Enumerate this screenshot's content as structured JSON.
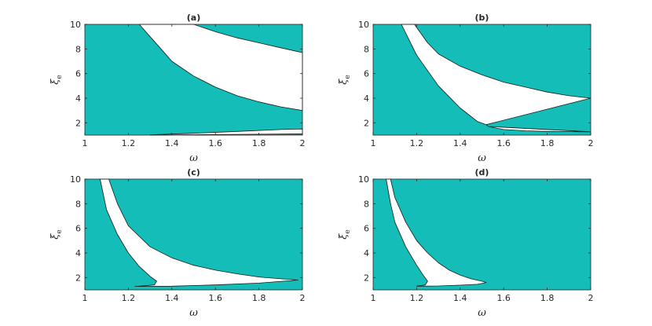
{
  "figure": {
    "fill_color": "#14bdb8",
    "background_color": "#ffffff",
    "boundary_color": "#1a1a1a"
  },
  "chart_data": [
    {
      "type": "area",
      "title": "(a)",
      "xlabel": "ω",
      "ylabel": "ξ",
      "ylabel_sub": "e",
      "xlim": [
        1,
        2
      ],
      "ylim": [
        1,
        10
      ],
      "xticks": [
        "1",
        "1.2",
        "1.4",
        "1.6",
        "1.8",
        "2"
      ],
      "yticks": [
        "2",
        "4",
        "6",
        "8",
        "10"
      ],
      "fill_region": "outside white bands",
      "white_regions": [
        {
          "upper": [
            [
              1.5,
              10
            ],
            [
              1.6,
              9.4
            ],
            [
              1.7,
              8.9
            ],
            [
              1.8,
              8.5
            ],
            [
              1.9,
              8.1
            ],
            [
              2.0,
              7.7
            ]
          ],
          "lower": [
            [
              1.25,
              10
            ],
            [
              1.3,
              9.0
            ],
            [
              1.35,
              8.0
            ],
            [
              1.4,
              7.0
            ],
            [
              1.5,
              5.8
            ],
            [
              1.6,
              4.9
            ],
            [
              1.7,
              4.2
            ],
            [
              1.8,
              3.7
            ],
            [
              1.9,
              3.3
            ],
            [
              2.0,
              3.0
            ]
          ]
        },
        {
          "upper": [
            [
              1.3,
              1.02
            ],
            [
              1.5,
              1.15
            ],
            [
              1.7,
              1.3
            ],
            [
              1.9,
              1.45
            ],
            [
              2.0,
              1.5
            ]
          ],
          "lower": [
            [
              1.3,
              1.0
            ],
            [
              1.5,
              1.03
            ],
            [
              1.7,
              1.06
            ],
            [
              2.0,
              1.1
            ]
          ]
        }
      ]
    },
    {
      "type": "area",
      "title": "(b)",
      "xlabel": "ω",
      "ylabel": "ξ",
      "ylabel_sub": "e",
      "xlim": [
        1,
        2
      ],
      "ylim": [
        1,
        10
      ],
      "xticks": [
        "1",
        "1.2",
        "1.4",
        "1.6",
        "1.8",
        "2"
      ],
      "yticks": [
        "2",
        "4",
        "6",
        "8",
        "10"
      ],
      "fill_region": "outside white band",
      "white_regions": [
        {
          "upper": [
            [
              1.19,
              10
            ],
            [
              1.25,
              8.5
            ],
            [
              1.3,
              7.6
            ],
            [
              1.4,
              6.6
            ],
            [
              1.5,
              5.9
            ],
            [
              1.6,
              5.3
            ],
            [
              1.7,
              4.9
            ],
            [
              1.8,
              4.5
            ],
            [
              1.9,
              4.2
            ],
            [
              2.0,
              4.0
            ]
          ],
          "tip": [
            [
              1.52,
              1.85
            ],
            [
              1.53,
              1.7
            ]
          ],
          "lower_left": [
            [
              1.13,
              10
            ],
            [
              1.2,
              7.5
            ],
            [
              1.3,
              5.0
            ],
            [
              1.4,
              3.2
            ],
            [
              1.48,
              2.1
            ],
            [
              1.52,
              1.85
            ]
          ],
          "lower_right": [
            [
              1.53,
              1.7
            ],
            [
              1.6,
              1.45
            ],
            [
              1.7,
              1.35
            ],
            [
              1.8,
              1.3
            ],
            [
              1.9,
              1.28
            ],
            [
              2.0,
              1.27
            ]
          ]
        }
      ]
    },
    {
      "type": "area",
      "title": "(c)",
      "xlabel": "ω",
      "ylabel": "ξ",
      "ylabel_sub": "e",
      "xlim": [
        1,
        2
      ],
      "ylim": [
        1,
        10
      ],
      "xticks": [
        "1",
        "1.2",
        "1.4",
        "1.6",
        "1.8",
        "2"
      ],
      "yticks": [
        "2",
        "4",
        "6",
        "8",
        "10"
      ],
      "fill_region": "outside white tongue",
      "white_regions": [
        {
          "upper": [
            [
              1.11,
              10
            ],
            [
              1.15,
              8.0
            ],
            [
              1.2,
              6.2
            ],
            [
              1.3,
              4.5
            ],
            [
              1.4,
              3.6
            ],
            [
              1.5,
              3.0
            ],
            [
              1.6,
              2.6
            ],
            [
              1.7,
              2.3
            ],
            [
              1.8,
              2.05
            ],
            [
              1.9,
              1.9
            ],
            [
              1.98,
              1.8
            ]
          ],
          "lower_left": [
            [
              1.07,
              10
            ],
            [
              1.1,
              7.5
            ],
            [
              1.15,
              5.5
            ],
            [
              1.2,
              4.0
            ],
            [
              1.25,
              2.9
            ],
            [
              1.3,
              2.1
            ],
            [
              1.33,
              1.7
            ],
            [
              1.32,
              1.4
            ],
            [
              1.25,
              1.3
            ],
            [
              1.23,
              1.28
            ]
          ],
          "lower_right": [
            [
              1.23,
              1.28
            ],
            [
              1.4,
              1.3
            ],
            [
              1.6,
              1.4
            ],
            [
              1.8,
              1.55
            ],
            [
              1.98,
              1.8
            ]
          ]
        }
      ]
    },
    {
      "type": "area",
      "title": "(d)",
      "xlabel": "ω",
      "ylabel": "ξ",
      "ylabel_sub": "e",
      "xlim": [
        1,
        2
      ],
      "ylim": [
        1,
        10
      ],
      "xticks": [
        "1",
        "1.2",
        "1.4",
        "1.6",
        "1.8",
        "2"
      ],
      "yticks": [
        "2",
        "4",
        "6",
        "8",
        "10"
      ],
      "fill_region": "outside white tongue",
      "white_regions": [
        {
          "upper": [
            [
              1.08,
              10
            ],
            [
              1.1,
              8.5
            ],
            [
              1.15,
              6.5
            ],
            [
              1.2,
              5.0
            ],
            [
              1.25,
              4.0
            ],
            [
              1.3,
              3.2
            ],
            [
              1.35,
              2.6
            ],
            [
              1.4,
              2.2
            ],
            [
              1.45,
              1.9
            ],
            [
              1.5,
              1.7
            ],
            [
              1.52,
              1.6
            ]
          ],
          "lower_left": [
            [
              1.06,
              10
            ],
            [
              1.08,
              8.0
            ],
            [
              1.1,
              6.5
            ],
            [
              1.15,
              4.5
            ],
            [
              1.2,
              3.0
            ],
            [
              1.23,
              2.2
            ],
            [
              1.25,
              1.7
            ],
            [
              1.24,
              1.4
            ],
            [
              1.2,
              1.3
            ]
          ],
          "lower_right": [
            [
              1.2,
              1.3
            ],
            [
              1.3,
              1.32
            ],
            [
              1.4,
              1.38
            ],
            [
              1.48,
              1.45
            ],
            [
              1.52,
              1.6
            ]
          ]
        }
      ]
    }
  ]
}
